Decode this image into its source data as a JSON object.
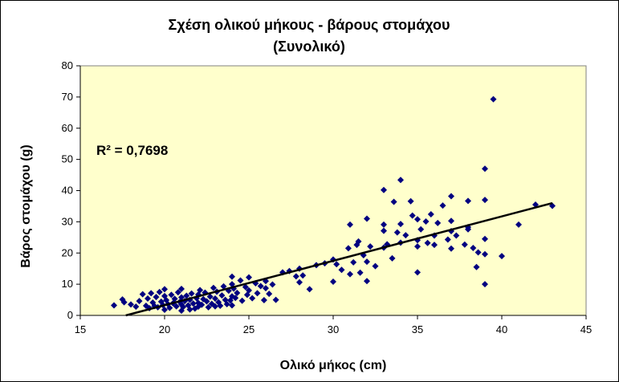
{
  "chart_data": {
    "type": "scatter",
    "title": [
      "Σχέση ολικού  μήκους - βάρους στομάχου",
      "(Συνολικό)"
    ],
    "xlabel": "Ολικό μήκος (cm)",
    "ylabel": "Βάρος στομάχου (g)",
    "xlim": [
      15,
      45
    ],
    "ylim": [
      0,
      80
    ],
    "xticks": [
      15,
      20,
      25,
      30,
      35,
      40,
      45
    ],
    "yticks": [
      0,
      10,
      20,
      30,
      40,
      50,
      60,
      70,
      80
    ],
    "grid": false,
    "legend": "none",
    "annotation": "R² = 0,7698",
    "colors": {
      "plot_area": "#ffffcc",
      "marker": "#000080",
      "trendline": "#000000"
    },
    "trendline": {
      "x": [
        17.7,
        43
      ],
      "y": [
        0,
        36
      ]
    },
    "points": [
      [
        17.0,
        3.2
      ],
      [
        17.5,
        5.1
      ],
      [
        17.6,
        4.2
      ],
      [
        18.0,
        3.5
      ],
      [
        18.3,
        2.8
      ],
      [
        18.5,
        4.6
      ],
      [
        18.7,
        6.8
      ],
      [
        18.9,
        3.1
      ],
      [
        19.0,
        5.4
      ],
      [
        19.1,
        2.3
      ],
      [
        19.2,
        7.1
      ],
      [
        19.3,
        4.1
      ],
      [
        19.4,
        3.0
      ],
      [
        19.5,
        5.9
      ],
      [
        19.6,
        2.6
      ],
      [
        19.7,
        7.5
      ],
      [
        19.8,
        4.4
      ],
      [
        19.9,
        3.3
      ],
      [
        20.0,
        6.2
      ],
      [
        20.0,
        8.4
      ],
      [
        20.0,
        1.8
      ],
      [
        20.1,
        4.9
      ],
      [
        20.2,
        3.6
      ],
      [
        20.3,
        2.4
      ],
      [
        20.4,
        6.6
      ],
      [
        20.5,
        3.9
      ],
      [
        20.6,
        5.3
      ],
      [
        20.7,
        2.9
      ],
      [
        20.8,
        7.4
      ],
      [
        20.9,
        4.3
      ],
      [
        21.0,
        1.5
      ],
      [
        21.0,
        3.5
      ],
      [
        21.0,
        5.8
      ],
      [
        21.0,
        8.5
      ],
      [
        21.1,
        2.7
      ],
      [
        21.2,
        4.6
      ],
      [
        21.3,
        6.3
      ],
      [
        21.4,
        3.2
      ],
      [
        21.5,
        1.9
      ],
      [
        21.5,
        5.0
      ],
      [
        21.6,
        7.0
      ],
      [
        21.7,
        3.8
      ],
      [
        21.8,
        2.2
      ],
      [
        21.9,
        5.5
      ],
      [
        22.0,
        4.0
      ],
      [
        22.0,
        6.7
      ],
      [
        22.0,
        2.8
      ],
      [
        22.1,
        8.1
      ],
      [
        22.2,
        3.4
      ],
      [
        22.3,
        5.2
      ],
      [
        22.4,
        7.3
      ],
      [
        22.5,
        4.5
      ],
      [
        22.6,
        2.6
      ],
      [
        22.7,
        6.0
      ],
      [
        22.8,
        3.7
      ],
      [
        22.9,
        8.8
      ],
      [
        23.0,
        5.4
      ],
      [
        23.0,
        2.9
      ],
      [
        23.1,
        7.6
      ],
      [
        23.2,
        4.2
      ],
      [
        23.3,
        3.1
      ],
      [
        23.4,
        6.4
      ],
      [
        23.5,
        9.3
      ],
      [
        23.6,
        5.0
      ],
      [
        23.7,
        3.6
      ],
      [
        23.8,
        7.9
      ],
      [
        23.9,
        4.8
      ],
      [
        24.0,
        6.1
      ],
      [
        24.0,
        10.0
      ],
      [
        24.0,
        12.4
      ],
      [
        24.0,
        3.2
      ],
      [
        24.1,
        8.6
      ],
      [
        24.2,
        5.6
      ],
      [
        24.3,
        7.2
      ],
      [
        24.5,
        11.2
      ],
      [
        24.6,
        4.7
      ],
      [
        24.8,
        9.1
      ],
      [
        24.9,
        6.6
      ],
      [
        25.0,
        8.0
      ],
      [
        25.0,
        12.2
      ],
      [
        25.2,
        5.5
      ],
      [
        25.4,
        10.3
      ],
      [
        25.5,
        7.1
      ],
      [
        25.7,
        9.4
      ],
      [
        25.9,
        4.9
      ],
      [
        26.0,
        8.7
      ],
      [
        26.0,
        11.0
      ],
      [
        26.2,
        6.9
      ],
      [
        26.4,
        9.9
      ],
      [
        26.6,
        5.0
      ],
      [
        27.0,
        13.8
      ],
      [
        27.4,
        14.2
      ],
      [
        27.8,
        12.5
      ],
      [
        28.0,
        10.6
      ],
      [
        28.0,
        15.0
      ],
      [
        28.2,
        12.8
      ],
      [
        28.6,
        8.4
      ],
      [
        29.0,
        16.1
      ],
      [
        29.5,
        16.7
      ],
      [
        30.0,
        10.8
      ],
      [
        30.0,
        17.9
      ],
      [
        30.2,
        16.4
      ],
      [
        30.5,
        14.6
      ],
      [
        30.9,
        21.5
      ],
      [
        31.0,
        29.1
      ],
      [
        31.0,
        13.2
      ],
      [
        31.2,
        17.0
      ],
      [
        31.4,
        22.6
      ],
      [
        31.5,
        23.7
      ],
      [
        31.6,
        13.7
      ],
      [
        31.8,
        19.3
      ],
      [
        32.0,
        17.2
      ],
      [
        32.0,
        31.0
      ],
      [
        32.0,
        11.0
      ],
      [
        32.2,
        22.1
      ],
      [
        32.5,
        15.8
      ],
      [
        33.0,
        21.7
      ],
      [
        33.0,
        27.1
      ],
      [
        33.0,
        40.2
      ],
      [
        33.0,
        29.1
      ],
      [
        33.2,
        22.8
      ],
      [
        33.5,
        18.3
      ],
      [
        33.6,
        36.4
      ],
      [
        33.8,
        26.6
      ],
      [
        34.0,
        23.3
      ],
      [
        34.0,
        29.3
      ],
      [
        34.0,
        43.4
      ],
      [
        34.3,
        25.7
      ],
      [
        34.6,
        36.6
      ],
      [
        34.7,
        32.0
      ],
      [
        35.0,
        13.8
      ],
      [
        35.0,
        24.1
      ],
      [
        35.0,
        30.8
      ],
      [
        35.0,
        22.1
      ],
      [
        35.2,
        27.6
      ],
      [
        35.5,
        30.1
      ],
      [
        35.6,
        23.2
      ],
      [
        35.8,
        32.4
      ],
      [
        36.0,
        25.6
      ],
      [
        36.0,
        22.6
      ],
      [
        36.2,
        29.6
      ],
      [
        36.5,
        35.2
      ],
      [
        36.8,
        24.3
      ],
      [
        37.0,
        21.4
      ],
      [
        37.0,
        27.0
      ],
      [
        37.0,
        38.2
      ],
      [
        37.0,
        30.3
      ],
      [
        37.3,
        25.6
      ],
      [
        37.8,
        22.7
      ],
      [
        38.0,
        28.3
      ],
      [
        38.0,
        36.7
      ],
      [
        38.0,
        27.6
      ],
      [
        38.3,
        21.6
      ],
      [
        38.5,
        15.5
      ],
      [
        38.6,
        20.2
      ],
      [
        39.0,
        47.0
      ],
      [
        39.0,
        37.0
      ],
      [
        39.0,
        24.5
      ],
      [
        39.0,
        10.0
      ],
      [
        39.0,
        19.6
      ],
      [
        39.5,
        69.3
      ],
      [
        40.0,
        19.0
      ],
      [
        41.0,
        29.1
      ],
      [
        42.0,
        35.5
      ],
      [
        43.0,
        35.1
      ]
    ]
  }
}
